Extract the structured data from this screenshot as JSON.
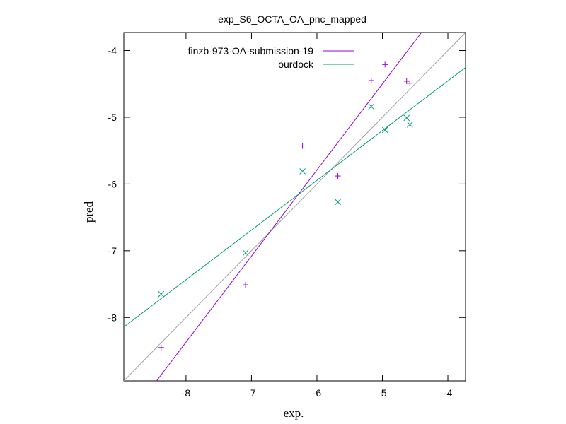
{
  "chart_data": {
    "type": "scatter",
    "title": "exp_S6_OCTA_OA_pnc_mapped",
    "xlabel": "exp.",
    "ylabel": "pred",
    "xlim": [
      -8.95,
      -3.73
    ],
    "ylim": [
      -8.95,
      -3.73
    ],
    "xticks": [
      -8,
      -7,
      -6,
      -5,
      -4
    ],
    "yticks": [
      -8,
      -7,
      -6,
      -5,
      -4
    ],
    "xtick_labels": [
      "-8",
      "-7",
      "-6",
      "-5",
      "-4"
    ],
    "ytick_labels": [
      "-8",
      "-7",
      "-6",
      "-5",
      "-4"
    ],
    "grid": false,
    "legend_position": "top-right",
    "diagonal": {
      "color": "#a0a0a0"
    },
    "series": [
      {
        "name": "finzb-973-OA-submission-19",
        "color": "#9400d3",
        "marker": "plus",
        "x": [
          -8.38,
          -7.09,
          -6.22,
          -5.68,
          -5.17,
          -4.96,
          -4.63,
          -4.58
        ],
        "y": [
          -8.45,
          -7.51,
          -5.43,
          -5.88,
          -4.45,
          -4.21,
          -4.46,
          -4.49
        ],
        "fit": {
          "slope": 1.29,
          "intercept": 1.95
        }
      },
      {
        "name": "ourdock",
        "color": "#009e73",
        "marker": "cross",
        "x": [
          -8.38,
          -7.09,
          -6.22,
          -5.68,
          -5.17,
          -4.96,
          -4.63,
          -4.58
        ],
        "y": [
          -7.65,
          -7.03,
          -5.81,
          -6.27,
          -4.84,
          -5.19,
          -5.01,
          -5.11
        ],
        "fit": {
          "slope": 0.745,
          "intercept": -1.475
        }
      }
    ]
  }
}
